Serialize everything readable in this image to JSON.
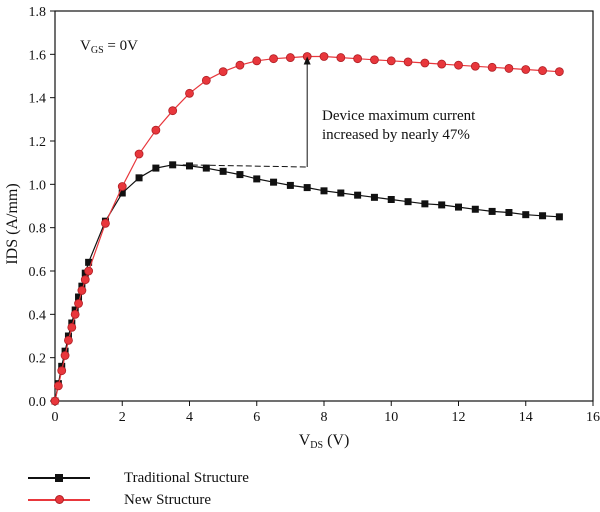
{
  "chart_data": {
    "type": "line",
    "title": "",
    "xlabel": "V_DS (V)",
    "ylabel": "IDS (A/mm)",
    "xlim": [
      0,
      16
    ],
    "ylim": [
      0,
      1.8
    ],
    "xticks": [
      0,
      2,
      4,
      6,
      8,
      10,
      12,
      14,
      16
    ],
    "yticks": [
      0.0,
      0.2,
      0.4,
      0.6,
      0.8,
      1.0,
      1.2,
      1.4,
      1.6,
      1.8
    ],
    "grid": false,
    "legend_position": "bottom-left",
    "series": [
      {
        "name": "Traditional Structure",
        "color": "#111111",
        "marker": "square",
        "x": [
          0,
          0.1,
          0.2,
          0.3,
          0.4,
          0.5,
          0.6,
          0.7,
          0.8,
          0.9,
          1.0,
          1.5,
          2.0,
          2.5,
          3.0,
          3.5,
          4.0,
          4.5,
          5.0,
          5.5,
          6.0,
          6.5,
          7.0,
          7.5,
          8.0,
          8.5,
          9.0,
          9.5,
          10.0,
          10.5,
          11.0,
          11.5,
          12.0,
          12.5,
          13.0,
          13.5,
          14.0,
          14.5,
          15.0
        ],
        "y": [
          0.0,
          0.08,
          0.16,
          0.23,
          0.3,
          0.36,
          0.42,
          0.48,
          0.53,
          0.59,
          0.64,
          0.83,
          0.96,
          1.03,
          1.075,
          1.09,
          1.085,
          1.075,
          1.06,
          1.045,
          1.025,
          1.01,
          0.995,
          0.985,
          0.97,
          0.96,
          0.95,
          0.94,
          0.93,
          0.92,
          0.91,
          0.905,
          0.895,
          0.885,
          0.875,
          0.87,
          0.86,
          0.855,
          0.85
        ]
      },
      {
        "name": "New Structure",
        "color": "#e8373c",
        "marker": "circle",
        "x": [
          0,
          0.1,
          0.2,
          0.3,
          0.4,
          0.5,
          0.6,
          0.7,
          0.8,
          0.9,
          1.0,
          1.5,
          2.0,
          2.5,
          3.0,
          3.5,
          4.0,
          4.5,
          5.0,
          5.5,
          6.0,
          6.5,
          7.0,
          7.5,
          8.0,
          8.5,
          9.0,
          9.5,
          10.0,
          10.5,
          11.0,
          11.5,
          12.0,
          12.5,
          13.0,
          13.5,
          14.0,
          14.5,
          15.0
        ],
        "y": [
          0.0,
          0.07,
          0.14,
          0.21,
          0.28,
          0.34,
          0.4,
          0.45,
          0.51,
          0.56,
          0.6,
          0.82,
          0.99,
          1.14,
          1.25,
          1.34,
          1.42,
          1.48,
          1.52,
          1.55,
          1.57,
          1.58,
          1.585,
          1.59,
          1.59,
          1.585,
          1.58,
          1.575,
          1.57,
          1.565,
          1.56,
          1.555,
          1.55,
          1.545,
          1.54,
          1.535,
          1.53,
          1.525,
          1.52
        ]
      }
    ],
    "annotations": {
      "vgs_label_main": "V",
      "vgs_label_sub": "GS",
      "vgs_label_rest": " = 0V",
      "arrow_note_line1": "Device maximum current",
      "arrow_note_line2": "increased by nearly 47%",
      "arrow_x": 7.5,
      "arrow_y_from": 1.08,
      "arrow_y_to": 1.59,
      "dash_from_x": 3.8,
      "dash_from_y": 1.09
    }
  },
  "axis_titles": {
    "x_main": "V",
    "x_sub": "DS",
    "x_rest": " (V)",
    "y": "IDS (A/mm)"
  },
  "legend": {
    "items": [
      {
        "label": "Traditional Structure",
        "color": "#111111",
        "marker": "square"
      },
      {
        "label": "New Structure",
        "color": "#e8373c",
        "marker": "circle"
      }
    ]
  }
}
